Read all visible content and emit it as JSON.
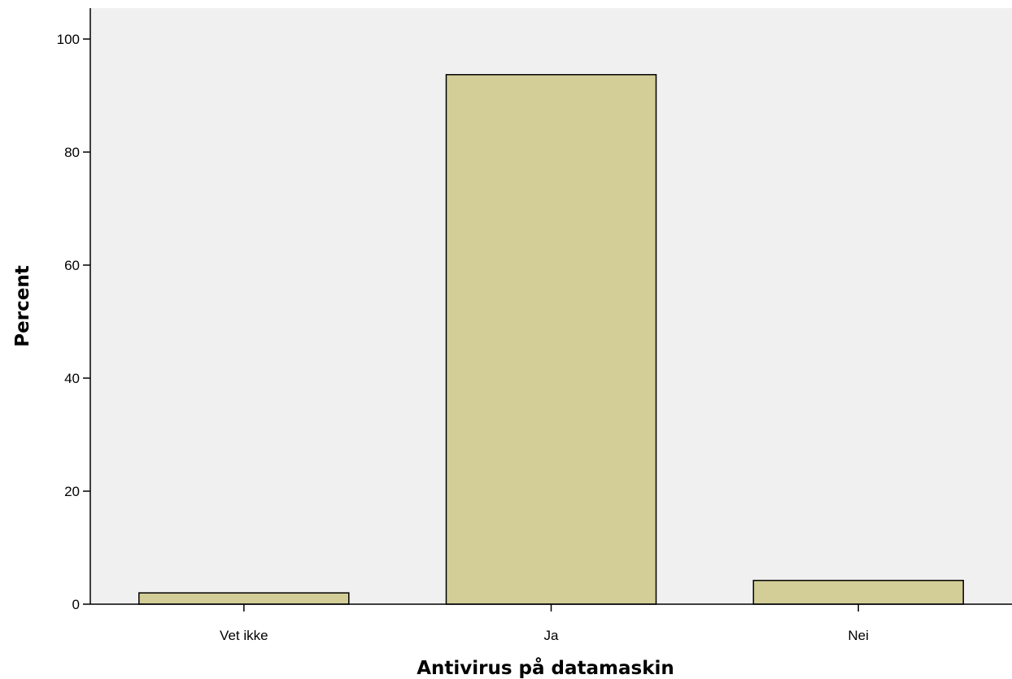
{
  "chart_data": {
    "type": "bar",
    "title": "",
    "xlabel": "Antivirus på datamaskin",
    "ylabel": "Percent",
    "categories": [
      "Vet ikke",
      "Ja",
      "Nei"
    ],
    "values": [
      2.0,
      93.7,
      4.2
    ],
    "ylim": [
      0,
      105
    ],
    "yticks": [
      0,
      20,
      40,
      60,
      80,
      100
    ],
    "ytick_labels": [
      "0",
      "20",
      "40",
      "60",
      "80",
      "100"
    ],
    "grid": false,
    "legend": "none",
    "colors": {
      "bar_fill": "#d3cd98",
      "bar_stroke": "#000000",
      "plot_background": "#f0f0f0",
      "page_background": "#ffffff",
      "axis": "#000000"
    }
  }
}
